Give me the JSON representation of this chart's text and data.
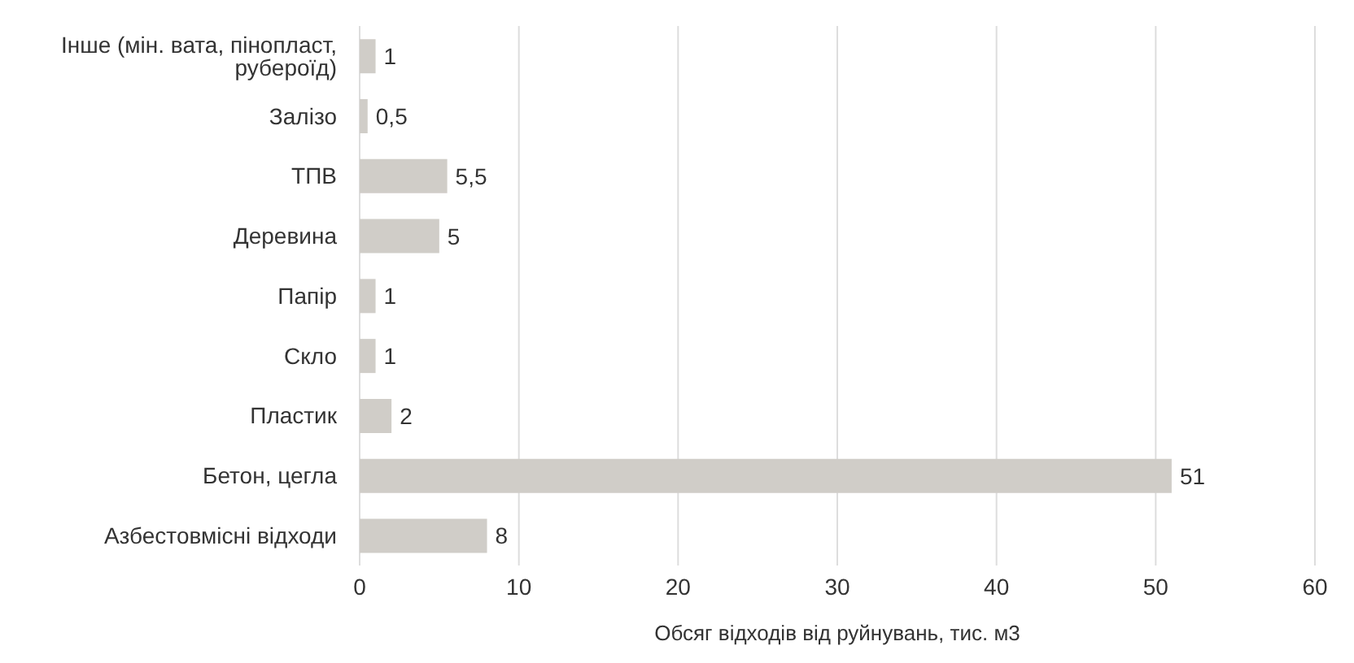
{
  "chart_data": {
    "type": "bar",
    "orientation": "horizontal",
    "xlabel": "Обсяг відходів від руйнувань, тис. м3",
    "categories": [
      "Інше (мін. вата, пінопласт, рубероїд)",
      "Залізо",
      "ТПВ",
      "Деревина",
      "Папір",
      "Скло",
      "Пластик",
      "Бетон, цегла",
      "Азбестовмісні відходи"
    ],
    "values": [
      1,
      0.5,
      5.5,
      5,
      1,
      1,
      2,
      51,
      8
    ],
    "value_labels": [
      "1",
      "0,5",
      "5,5",
      "5",
      "1",
      "1",
      "2",
      "51",
      "8"
    ],
    "color": "#d0cdc8",
    "xlim": [
      0,
      60
    ],
    "xticks": [
      0,
      10,
      20,
      30,
      40,
      50,
      60
    ],
    "grid": "x"
  }
}
